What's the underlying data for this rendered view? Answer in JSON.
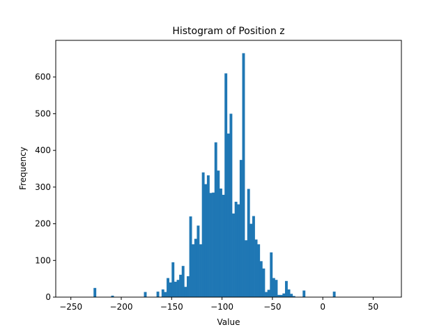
{
  "chart_data": {
    "type": "bar",
    "title": "Histogram of Position z",
    "xlabel": "Value",
    "ylabel": "Frequency",
    "xlim": [
      -265,
      78
    ],
    "ylim": [
      0,
      700
    ],
    "xticks": [
      -250,
      -200,
      -150,
      -100,
      -50,
      0,
      50
    ],
    "yticks": [
      0,
      100,
      200,
      300,
      400,
      500,
      600
    ],
    "bar_color": "#1f77b4",
    "bin_start": -235.0,
    "bin_width": 2.5,
    "counts": [
      0,
      0,
      0,
      25,
      0,
      0,
      0,
      0,
      0,
      0,
      4,
      0,
      0,
      0,
      0,
      0,
      0,
      0,
      0,
      0,
      0,
      0,
      0,
      14,
      0,
      0,
      0,
      0,
      15,
      0,
      21,
      14,
      52,
      40,
      95,
      42,
      47,
      61,
      85,
      28,
      57,
      220,
      144,
      159,
      195,
      144,
      340,
      308,
      332,
      284,
      285,
      422,
      345,
      296,
      279,
      610,
      446,
      500,
      228,
      260,
      253,
      374,
      665,
      155,
      295,
      200,
      221,
      157,
      144,
      98,
      78,
      14,
      20,
      122,
      52,
      47,
      6,
      6,
      10,
      44,
      21,
      9,
      3,
      0,
      0,
      1,
      18,
      0,
      0,
      0,
      0,
      0,
      0,
      0,
      0,
      0,
      0,
      0,
      15,
      0
    ]
  }
}
